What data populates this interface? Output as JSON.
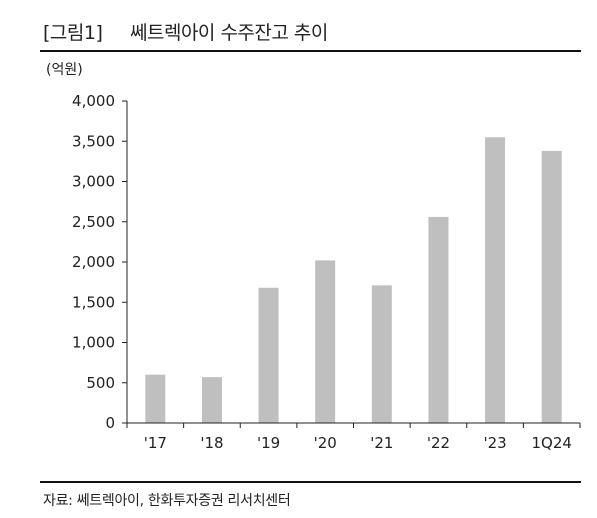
{
  "header": {
    "figure_label": "[그림1]",
    "title": "쎄트렉아이 수주잔고 추이"
  },
  "footer": {
    "source": "자료: 쎄트렉아이, 한화투자증권 리서치센터"
  },
  "chart_data": {
    "type": "bar",
    "title": "",
    "xlabel": "",
    "ylabel": "",
    "unit_label": "(억원)",
    "categories": [
      "'17",
      "'18",
      "'19",
      "'20",
      "'21",
      "'22",
      "'23",
      "1Q24"
    ],
    "values": [
      600,
      570,
      1680,
      2020,
      1710,
      2560,
      3550,
      3380
    ],
    "ylim": [
      0,
      4000
    ],
    "yticks": [
      0,
      500,
      1000,
      1500,
      2000,
      2500,
      3000,
      3500,
      4000
    ],
    "ytick_labels": [
      "0",
      "500",
      "1,000",
      "1,500",
      "2,000",
      "2,500",
      "3,000",
      "3,500",
      "4,000"
    ],
    "bar_color": "#bfbfbf",
    "grid": false,
    "legend": "none"
  }
}
